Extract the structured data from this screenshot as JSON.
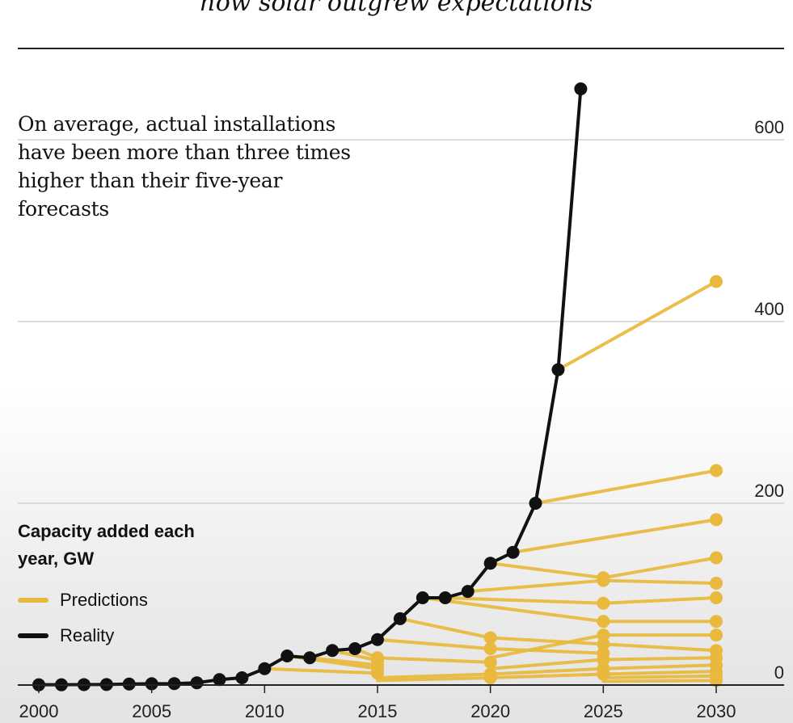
{
  "header": {
    "subtitle": "how solar outgrew expectations"
  },
  "chart_data": {
    "type": "line",
    "annotation": "On average, actual installations have been more than three times higher than their five-year forecasts",
    "units_label": "Capacity added each year, GW",
    "xlim": [
      2000,
      2030
    ],
    "ylim": [
      0,
      650
    ],
    "x_ticks": [
      2000,
      2005,
      2010,
      2015,
      2020,
      2025,
      2030
    ],
    "y_ticks": [
      0,
      200,
      400,
      600
    ],
    "y_axis_position": "right",
    "grid": true,
    "legend_placement": "bottom-left",
    "series": [
      {
        "name": "Reality",
        "color": "#111111",
        "points": [
          [
            2000,
            0.3
          ],
          [
            2001,
            0.3
          ],
          [
            2002,
            0.5
          ],
          [
            2003,
            0.6
          ],
          [
            2004,
            1.1
          ],
          [
            2005,
            1.4
          ],
          [
            2006,
            1.6
          ],
          [
            2007,
            2.5
          ],
          [
            2008,
            6
          ],
          [
            2009,
            8
          ],
          [
            2010,
            18
          ],
          [
            2011,
            32
          ],
          [
            2012,
            30
          ],
          [
            2013,
            38
          ],
          [
            2014,
            40
          ],
          [
            2015,
            50
          ],
          [
            2016,
            73
          ],
          [
            2017,
            96
          ],
          [
            2018,
            96
          ],
          [
            2019,
            103
          ],
          [
            2020,
            134
          ],
          [
            2021,
            146
          ],
          [
            2022,
            200
          ],
          [
            2023,
            347
          ],
          [
            2024,
            656
          ]
        ]
      },
      {
        "name": "Predictions",
        "color": "#E8B93C",
        "lines": [
          [
            [
              2010,
              18
            ],
            [
              2015,
              13
            ]
          ],
          [
            [
              2011,
              32
            ],
            [
              2015,
              18
            ]
          ],
          [
            [
              2012,
              30
            ],
            [
              2015,
              22
            ]
          ],
          [
            [
              2013,
              38
            ],
            [
              2015,
              27
            ]
          ],
          [
            [
              2014,
              40
            ],
            [
              2015,
              30
            ],
            [
              2020,
              25
            ]
          ],
          [
            [
              2015,
              50
            ],
            [
              2020,
              40
            ],
            [
              2025,
              35
            ]
          ],
          [
            [
              2016,
              73
            ],
            [
              2020,
              52
            ],
            [
              2025,
              45
            ],
            [
              2030,
              38
            ]
          ],
          [
            [
              2017,
              96
            ],
            [
              2025,
              70
            ],
            [
              2030,
              70
            ]
          ],
          [
            [
              2018,
              96
            ],
            [
              2025,
              90
            ],
            [
              2030,
              96
            ]
          ],
          [
            [
              2019,
              103
            ],
            [
              2025,
              115
            ],
            [
              2030,
              112
            ]
          ],
          [
            [
              2020,
              134
            ],
            [
              2025,
              118
            ],
            [
              2030,
              140
            ]
          ],
          [
            [
              2021,
              146
            ],
            [
              2030,
              182
            ]
          ],
          [
            [
              2022,
              200
            ],
            [
              2030,
              236
            ]
          ],
          [
            [
              2023,
              347
            ],
            [
              2030,
              444
            ]
          ],
          [
            [
              2015,
              8
            ],
            [
              2020,
              12
            ],
            [
              2025,
              18
            ],
            [
              2030,
              22
            ]
          ],
          [
            [
              2015,
              5
            ],
            [
              2020,
              8
            ],
            [
              2025,
              12
            ],
            [
              2030,
              15
            ]
          ],
          [
            [
              2020,
              18
            ],
            [
              2025,
              28
            ],
            [
              2030,
              30
            ]
          ],
          [
            [
              2020,
              30
            ],
            [
              2025,
              55
            ],
            [
              2030,
              55
            ]
          ],
          [
            [
              2025,
              8
            ],
            [
              2030,
              10
            ]
          ],
          [
            [
              2025,
              4
            ],
            [
              2030,
              5
            ]
          ]
        ]
      }
    ]
  }
}
